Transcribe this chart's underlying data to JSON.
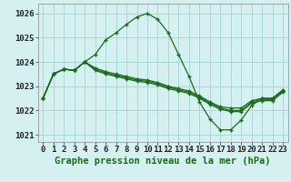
{
  "title": "Graphe pression niveau de la mer (hPa)",
  "bg_color": "#d4f0f0",
  "grid_color": "#a8d8d8",
  "line_color": "#1a6b1a",
  "x_labels": [
    "0",
    "1",
    "2",
    "3",
    "4",
    "5",
    "6",
    "7",
    "8",
    "9",
    "10",
    "11",
    "12",
    "13",
    "14",
    "15",
    "16",
    "17",
    "18",
    "19",
    "20",
    "21",
    "22",
    "23"
  ],
  "series": [
    [
      1022.5,
      1023.5,
      1023.7,
      1023.65,
      1024.0,
      1024.3,
      1024.9,
      1025.2,
      1025.55,
      1025.85,
      1026.0,
      1025.75,
      1025.2,
      1024.3,
      1023.4,
      1022.35,
      1021.65,
      1021.2,
      1021.2,
      1021.6,
      1022.2,
      1022.5,
      1022.5,
      1022.8
    ],
    [
      1022.5,
      1023.5,
      1023.7,
      1023.65,
      1024.0,
      1023.75,
      1023.6,
      1023.5,
      1023.4,
      1023.3,
      1023.25,
      1023.15,
      1023.0,
      1022.9,
      1022.8,
      1022.6,
      1022.35,
      1022.15,
      1022.1,
      1022.1,
      1022.4,
      1022.5,
      1022.5,
      1022.85
    ],
    [
      1022.5,
      1023.5,
      1023.7,
      1023.65,
      1024.0,
      1023.7,
      1023.55,
      1023.45,
      1023.35,
      1023.25,
      1023.2,
      1023.1,
      1022.95,
      1022.85,
      1022.75,
      1022.55,
      1022.3,
      1022.1,
      1022.0,
      1022.0,
      1022.35,
      1022.45,
      1022.45,
      1022.8
    ],
    [
      1022.5,
      1023.5,
      1023.7,
      1023.65,
      1024.0,
      1023.65,
      1023.5,
      1023.4,
      1023.3,
      1023.2,
      1023.15,
      1023.05,
      1022.9,
      1022.8,
      1022.7,
      1022.5,
      1022.25,
      1022.05,
      1021.95,
      1021.95,
      1022.3,
      1022.4,
      1022.4,
      1022.75
    ]
  ],
  "ylim": [
    1020.7,
    1026.4
  ],
  "yticks": [
    1021,
    1022,
    1023,
    1024,
    1025,
    1026
  ],
  "ylabel_fontsize": 6.5,
  "xlabel_fontsize": 6.5,
  "title_fontsize": 7.5
}
